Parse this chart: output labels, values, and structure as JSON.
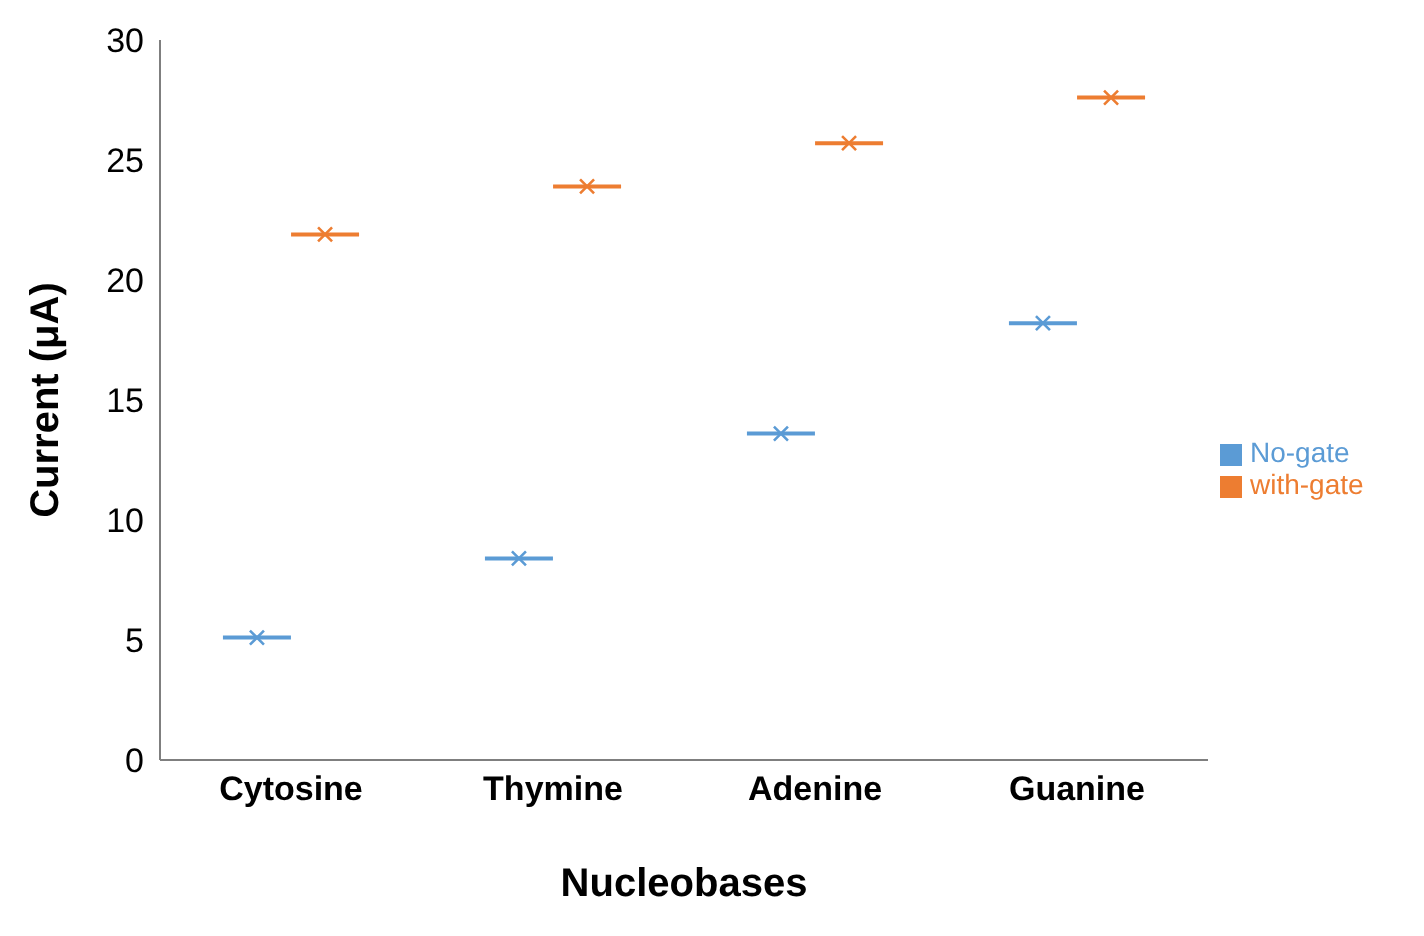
{
  "chart_data": {
    "type": "box",
    "xlabel": "Nucleobases",
    "ylabel": "Current (μA)",
    "categories": [
      "Cytosine",
      "Thymine",
      "Adenine",
      "Guanine"
    ],
    "ylim": [
      0,
      30
    ],
    "yticks": [
      0,
      5,
      10,
      15,
      20,
      25,
      30
    ],
    "grid": false,
    "legend": "right",
    "marker": "cross",
    "series": [
      {
        "name": "No-gate",
        "color": "#5b9bd5",
        "boxes": [
          {
            "low": 5.1,
            "q1": 5.1,
            "median": 5.1,
            "q3": 5.1,
            "high": 5.1,
            "mean": 5.1
          },
          {
            "low": 8.4,
            "q1": 8.4,
            "median": 8.4,
            "q3": 8.4,
            "high": 8.4,
            "mean": 8.4
          },
          {
            "low": 13.6,
            "q1": 13.6,
            "median": 13.6,
            "q3": 13.6,
            "high": 13.6,
            "mean": 13.6
          },
          {
            "low": 18.2,
            "q1": 18.2,
            "median": 18.2,
            "q3": 18.2,
            "high": 18.2,
            "mean": 18.2
          }
        ]
      },
      {
        "name": "with-gate",
        "color": "#ed7d31",
        "boxes": [
          {
            "low": 21.9,
            "q1": 21.9,
            "median": 21.9,
            "q3": 21.9,
            "high": 21.9,
            "mean": 21.9
          },
          {
            "low": 23.9,
            "q1": 23.9,
            "median": 23.9,
            "q3": 23.9,
            "high": 23.9,
            "mean": 23.9
          },
          {
            "low": 25.7,
            "q1": 25.7,
            "median": 25.7,
            "q3": 25.7,
            "high": 25.7,
            "mean": 25.7
          },
          {
            "low": 27.6,
            "q1": 27.6,
            "median": 27.6,
            "q3": 27.6,
            "high": 27.6,
            "mean": 27.6
          }
        ]
      }
    ]
  }
}
